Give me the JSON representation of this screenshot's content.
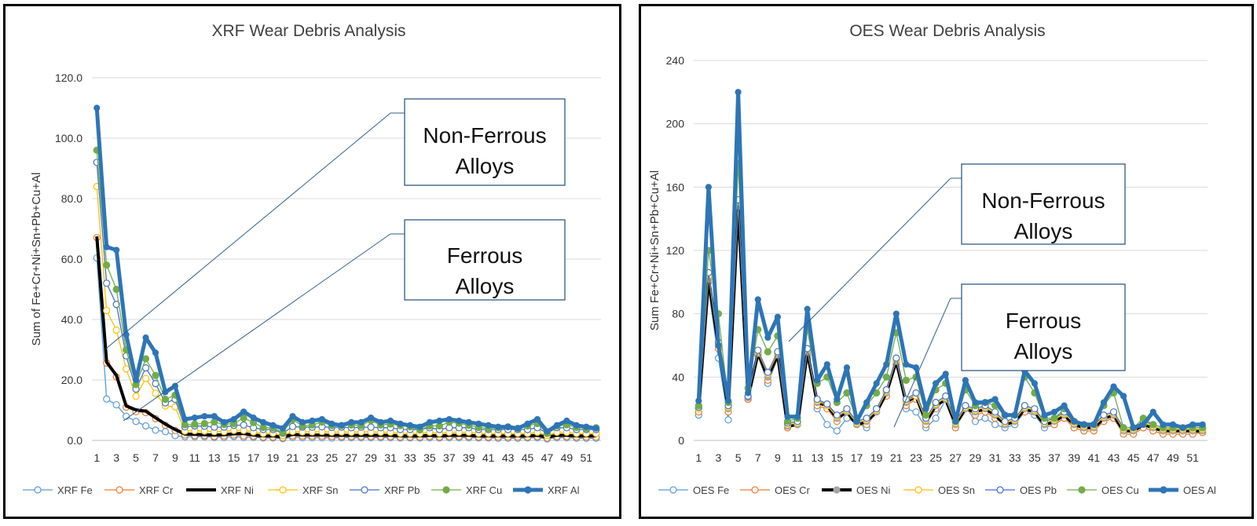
{
  "charts": [
    {
      "id": "xrf",
      "title": "XRF Wear Debris Analysis",
      "ylabel": "Sum of Fe+Cr+Ni+Sn+Pb+Cu+Al",
      "yticks": [
        "0.0",
        "20.0",
        "40.0",
        "60.0",
        "80.0",
        "100.0",
        "120.0"
      ],
      "ymax": 120,
      "callouts": [
        {
          "lines": [
            "Non-Ferrous",
            "Alloys"
          ]
        },
        {
          "lines": [
            "Ferrous",
            "Alloys"
          ]
        }
      ]
    },
    {
      "id": "oes",
      "title": "OES Wear Debris Analysis",
      "ylabel": "Sum Fe+Cr+Ni+Sn+Pb+Cu+Al",
      "yticks": [
        "0",
        "40",
        "80",
        "120",
        "160",
        "200",
        "240"
      ],
      "ymax": 240,
      "callouts": [
        {
          "lines": [
            "Non-Ferrous",
            "Alloys"
          ]
        },
        {
          "lines": [
            "Ferrous",
            "Alloys"
          ]
        }
      ]
    }
  ],
  "chart_data": [
    {
      "type": "line",
      "title": "XRF Wear Debris Analysis",
      "xlabel": "",
      "ylabel": "Sum of Fe+Cr+Ni+Sn+Pb+Cu+Al",
      "ylim": [
        0,
        120
      ],
      "x_tick_labels": [
        "1",
        "3",
        "5",
        "7",
        "9",
        "11",
        "13",
        "15",
        "17",
        "19",
        "21",
        "23",
        "25",
        "27",
        "29",
        "31",
        "33",
        "35",
        "37",
        "39",
        "41",
        "43",
        "45",
        "47",
        "49",
        "51"
      ],
      "x_count": 52,
      "cumulative": true,
      "legend_position": "bottom",
      "series": [
        {
          "name": "XRF Fe",
          "color": "#5B9BD5",
          "marker": "open-circle",
          "values": [
            60.4,
            13.7,
            11.8,
            8.0,
            6.3,
            4.8,
            3.4,
            2.9,
            1.6,
            1.2,
            1.2,
            1.2,
            1.0,
            1.0,
            1.3,
            1.0,
            1.0,
            0.8,
            0.8,
            0.6,
            1.0,
            0.9,
            0.9,
            0.9,
            0.8,
            0.9,
            0.9,
            0.9,
            0.9,
            0.9,
            0.9,
            0.8,
            0.8,
            0.8,
            0.9,
            0.8,
            0.9,
            0.9,
            0.9,
            0.8,
            0.8,
            0.7,
            0.7,
            0.7,
            0.8,
            0.9,
            0.5,
            0.9,
            0.9,
            0.7,
            0.7,
            0.7
          ]
        },
        {
          "name": "XRF Cr",
          "color": "#ED7D31",
          "marker": "open-circle",
          "values": [
            67.1,
            25.6,
            21.0,
            11.0,
            9.5,
            9.2,
            7.2,
            5.0,
            3.3,
            1.8,
            1.6,
            1.6,
            1.3,
            1.5,
            1.8,
            1.5,
            1.4,
            1.1,
            1.1,
            0.9,
            1.5,
            1.4,
            1.4,
            1.4,
            1.3,
            1.3,
            1.3,
            1.3,
            1.3,
            1.3,
            1.3,
            1.1,
            1.1,
            1.1,
            1.3,
            1.1,
            1.3,
            1.3,
            1.3,
            1.1,
            1.1,
            1.1,
            1.1,
            1.1,
            1.1,
            1.3,
            0.8,
            1.3,
            1.3,
            1.1,
            1.1,
            1.1
          ]
        },
        {
          "name": "XRF Ni",
          "color": "#000000",
          "marker": "none",
          "values": [
            67.5,
            25.9,
            21.5,
            11.4,
            10.1,
            9.7,
            7.5,
            5.4,
            3.6,
            2.1,
            2.0,
            1.9,
            1.8,
            1.9,
            2.2,
            2.3,
            1.8,
            1.5,
            1.5,
            1.1,
            2.0,
            1.8,
            1.8,
            1.8,
            1.7,
            1.7,
            1.7,
            1.7,
            1.7,
            1.7,
            1.7,
            1.5,
            1.5,
            1.5,
            1.7,
            1.5,
            1.7,
            1.7,
            1.7,
            1.5,
            1.5,
            1.5,
            1.5,
            1.5,
            1.5,
            1.7,
            1.1,
            1.7,
            1.7,
            1.5,
            1.5,
            1.5
          ]
        },
        {
          "name": "XRF Sn",
          "color": "#FFC000",
          "marker": "open-circle",
          "values": [
            84.0,
            43.0,
            36.5,
            23.7,
            14.6,
            20.5,
            15.6,
            11.4,
            11.1,
            3.1,
            3.2,
            3.1,
            2.9,
            2.9,
            3.3,
            3.3,
            2.8,
            2.3,
            2.4,
            1.6,
            3.0,
            2.8,
            2.8,
            2.9,
            2.7,
            2.8,
            2.7,
            2.8,
            2.8,
            2.7,
            2.7,
            2.3,
            2.3,
            2.3,
            2.7,
            2.3,
            2.7,
            2.7,
            2.7,
            2.3,
            2.3,
            2.3,
            2.3,
            2.3,
            2.3,
            2.7,
            1.6,
            2.7,
            2.7,
            2.3,
            2.3,
            2.3
          ]
        },
        {
          "name": "XRF Pb",
          "color": "#4472C4",
          "marker": "open-circle",
          "values": [
            92.0,
            52.0,
            45.0,
            28.0,
            17.0,
            24.0,
            18.8,
            12.4,
            13.6,
            4.5,
            4.8,
            4.7,
            4.4,
            4.4,
            5.0,
            5.1,
            4.2,
            3.6,
            3.6,
            2.4,
            4.6,
            4.4,
            4.4,
            4.5,
            4.3,
            4.4,
            4.2,
            4.4,
            4.4,
            4.2,
            4.2,
            3.6,
            3.6,
            3.6,
            4.2,
            3.6,
            4.2,
            4.2,
            4.2,
            3.6,
            3.6,
            3.6,
            3.6,
            3.6,
            3.6,
            4.2,
            2.4,
            4.2,
            4.2,
            3.6,
            3.6,
            3.6
          ]
        },
        {
          "name": "XRF Cu",
          "color": "#70AD47",
          "marker": "filled-circle",
          "values": [
            96.0,
            58.0,
            50.0,
            30.0,
            18.5,
            27.0,
            21.5,
            13.6,
            15.0,
            5.2,
            5.4,
            5.6,
            6.1,
            5.3,
            5.6,
            7.4,
            5.9,
            4.3,
            4.1,
            2.7,
            6.9,
            4.8,
            5.1,
            6.1,
            4.9,
            4.9,
            5.1,
            4.9,
            6.6,
            5.1,
            5.4,
            4.9,
            4.5,
            3.5,
            4.8,
            4.8,
            6.0,
            5.7,
            5.0,
            4.3,
            4.0,
            4.2,
            4.5,
            4.0,
            4.8,
            5.6,
            2.3,
            4.7,
            5.2,
            4.3,
            4.0,
            4.2
          ]
        },
        {
          "name": "XRF Al",
          "color": "#2E75B6",
          "marker": "filled-circle",
          "values": [
            110.0,
            64.0,
            63.0,
            35.0,
            20.0,
            34.0,
            29.0,
            16.0,
            18.0,
            7.0,
            7.5,
            8.0,
            8.0,
            6.0,
            7.0,
            9.5,
            7.5,
            6.0,
            5.0,
            4.0,
            8.0,
            6.0,
            6.5,
            7.0,
            5.5,
            5.0,
            6.0,
            6.0,
            7.5,
            6.0,
            6.5,
            5.5,
            5.0,
            4.5,
            6.0,
            6.5,
            7.0,
            6.5,
            6.0,
            5.5,
            5.0,
            4.5,
            4.5,
            4.0,
            5.5,
            7.0,
            3.0,
            5.0,
            6.5,
            5.0,
            4.5,
            4.0
          ]
        }
      ]
    },
    {
      "type": "line",
      "title": "OES Wear Debris Analysis",
      "xlabel": "",
      "ylabel": "Sum Fe+Cr+Ni+Sn+Pb+Cu+Al",
      "ylim": [
        0,
        240
      ],
      "x_tick_labels": [
        "1",
        "3",
        "5",
        "7",
        "9",
        "11",
        "13",
        "15",
        "17",
        "19",
        "21",
        "23",
        "25",
        "27",
        "29",
        "31",
        "33",
        "35",
        "37",
        "39",
        "41",
        "43",
        "45",
        "47",
        "49",
        "51"
      ],
      "x_count": 52,
      "cumulative": true,
      "legend_position": "bottom",
      "series": [
        {
          "name": "OES Fe",
          "color": "#5B9BD5",
          "marker": "open-circle",
          "values": [
            16,
            95,
            52,
            13,
            140,
            26,
            54,
            36,
            52,
            8,
            10,
            52,
            20,
            10,
            6,
            14,
            11,
            8,
            20,
            28,
            48,
            20,
            18,
            8,
            14,
            26,
            8,
            22,
            12,
            14,
            10,
            8,
            10,
            18,
            16,
            8,
            10,
            14,
            8,
            6,
            6,
            12,
            14,
            4,
            4,
            8,
            6,
            4,
            4,
            4,
            4,
            5
          ]
        },
        {
          "name": "OES Cr",
          "color": "#ED7D31",
          "marker": "open-circle",
          "values": [
            18,
            100,
            58,
            18,
            145,
            26,
            54,
            38,
            52,
            8,
            10,
            54,
            22,
            20,
            12,
            18,
            10,
            10,
            18,
            28,
            48,
            22,
            26,
            10,
            20,
            26,
            8,
            20,
            16,
            18,
            14,
            10,
            12,
            18,
            18,
            10,
            10,
            14,
            8,
            6,
            6,
            12,
            14,
            4,
            4,
            8,
            6,
            4,
            4,
            4,
            4,
            5
          ]
        },
        {
          "name": "OES Ni",
          "color": "#000000",
          "marker": "gray-circle",
          "values": [
            20,
            102,
            60,
            20,
            148,
            27,
            55,
            40,
            54,
            9,
            10,
            56,
            24,
            22,
            14,
            18,
            10,
            12,
            18,
            30,
            50,
            24,
            28,
            12,
            22,
            26,
            10,
            20,
            18,
            20,
            16,
            10,
            12,
            20,
            18,
            10,
            12,
            16,
            10,
            8,
            8,
            14,
            16,
            6,
            6,
            10,
            8,
            6,
            6,
            6,
            6,
            6
          ]
        },
        {
          "name": "OES Sn",
          "color": "#FFC000",
          "marker": "open-circle",
          "values": [
            20,
            104,
            61,
            21,
            150,
            28,
            56,
            42,
            55,
            10,
            11,
            57,
            25,
            22,
            15,
            19,
            11,
            13,
            19,
            31,
            51,
            25,
            28,
            13,
            23,
            27,
            11,
            21,
            19,
            21,
            17,
            11,
            13,
            21,
            19,
            11,
            13,
            17,
            11,
            9,
            9,
            15,
            17,
            7,
            7,
            11,
            9,
            7,
            7,
            7,
            7,
            7
          ]
        },
        {
          "name": "OES Pb",
          "color": "#4472C4",
          "marker": "open-circle",
          "values": [
            21,
            106,
            62,
            22,
            152,
            28,
            57,
            43,
            56,
            11,
            12,
            58,
            26,
            23,
            16,
            20,
            12,
            14,
            20,
            32,
            52,
            26,
            30,
            14,
            24,
            28,
            12,
            22,
            20,
            22,
            18,
            12,
            14,
            22,
            20,
            12,
            14,
            18,
            12,
            10,
            10,
            16,
            18,
            8,
            8,
            12,
            10,
            8,
            8,
            8,
            8,
            8
          ]
        },
        {
          "name": "OES Cu",
          "color": "#70AD47",
          "marker": "filled-circle",
          "values": [
            22,
            120,
            80,
            24,
            175,
            33,
            70,
            56,
            66,
            12,
            14,
            70,
            36,
            40,
            24,
            30,
            14,
            22,
            30,
            40,
            68,
            38,
            40,
            16,
            32,
            36,
            12,
            32,
            22,
            24,
            22,
            16,
            16,
            40,
            30,
            14,
            14,
            20,
            12,
            10,
            10,
            22,
            30,
            8,
            8,
            14,
            10,
            8,
            8,
            8,
            8,
            8
          ]
        },
        {
          "name": "OES Al",
          "color": "#2E75B6",
          "marker": "filled-circle",
          "values": [
            25,
            160,
            60,
            25,
            220,
            30,
            89,
            65,
            78,
            15,
            15,
            83,
            38,
            48,
            26,
            46,
            12,
            24,
            36,
            48,
            80,
            48,
            46,
            20,
            36,
            42,
            12,
            38,
            24,
            24,
            26,
            16,
            16,
            44,
            36,
            16,
            18,
            22,
            12,
            10,
            10,
            24,
            34,
            28,
            8,
            10,
            18,
            10,
            10,
            8,
            10,
            10
          ]
        }
      ]
    }
  ]
}
